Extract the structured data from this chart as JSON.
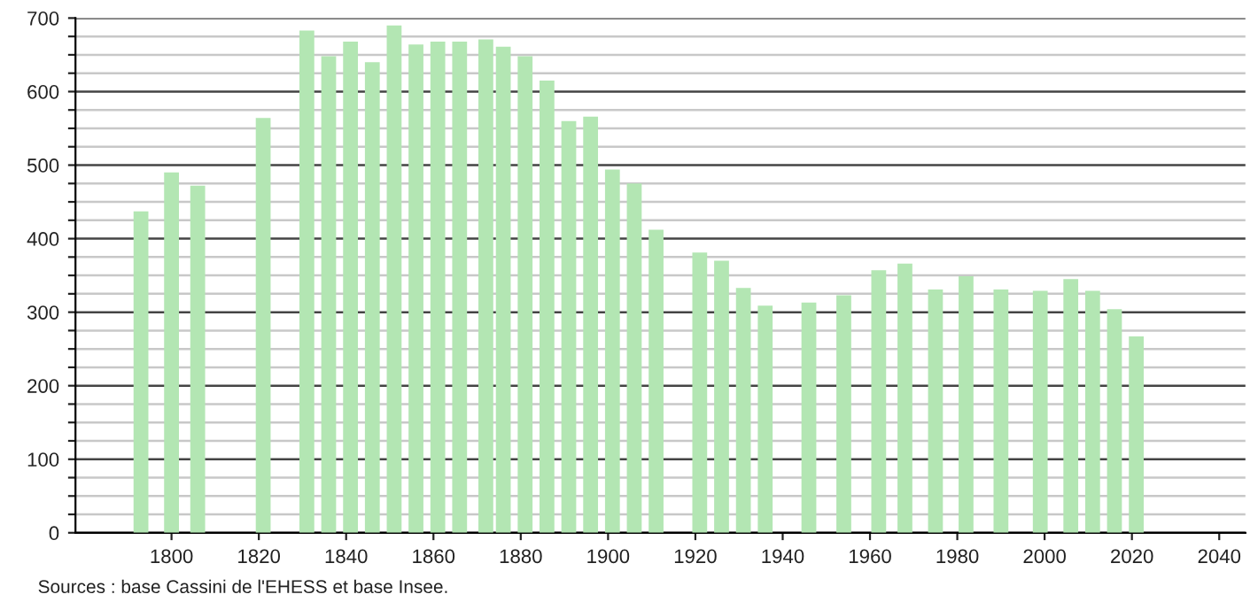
{
  "chart_data": {
    "type": "bar",
    "x": [
      1793,
      1800,
      1806,
      1821,
      1831,
      1836,
      1841,
      1846,
      1851,
      1856,
      1861,
      1866,
      1872,
      1876,
      1881,
      1886,
      1891,
      1896,
      1901,
      1906,
      1911,
      1921,
      1926,
      1931,
      1936,
      1946,
      1954,
      1962,
      1968,
      1975,
      1982,
      1990,
      1999,
      2006,
      2011,
      2016,
      2021
    ],
    "values": [
      437,
      490,
      472,
      564,
      683,
      648,
      668,
      640,
      690,
      664,
      668,
      668,
      671,
      661,
      648,
      615,
      560,
      566,
      494,
      475,
      412,
      381,
      370,
      333,
      309,
      313,
      323,
      357,
      366,
      331,
      349,
      331,
      329,
      345,
      329,
      304,
      267
    ],
    "color": "#b3e6b3",
    "xlim": [
      1778,
      2046
    ],
    "xticks": [
      1800,
      1820,
      1840,
      1860,
      1880,
      1900,
      1920,
      1940,
      1960,
      1980,
      2000,
      2020,
      2040
    ],
    "ylim": [
      0,
      700
    ],
    "yticks": [
      0,
      {
        "value": 25,
        "label": null
      },
      {
        "value": 50,
        "label": null
      },
      {
        "value": 75,
        "label": null
      },
      100,
      {
        "value": 125,
        "label": null
      },
      {
        "value": 150,
        "label": null
      },
      {
        "value": 175,
        "label": null
      },
      200,
      {
        "value": 225,
        "label": null
      },
      {
        "value": 250,
        "label": null
      },
      {
        "value": 275,
        "label": null
      },
      300,
      {
        "value": 325,
        "label": null
      },
      {
        "value": 350,
        "label": null
      },
      {
        "value": 375,
        "label": null
      },
      400,
      {
        "value": 425,
        "label": null
      },
      {
        "value": 450,
        "label": null
      },
      {
        "value": 475,
        "label": null
      },
      500,
      {
        "value": 525,
        "label": null
      },
      {
        "value": 550,
        "label": null
      },
      {
        "value": 575,
        "label": null
      },
      600,
      {
        "value": 625,
        "label": null
      },
      {
        "value": 650,
        "label": null
      },
      {
        "value": 675,
        "label": null
      },
      700
    ],
    "grid": "y",
    "annotations": [
      "Sources : base Cassini de l'EHESS et base Insee."
    ]
  }
}
